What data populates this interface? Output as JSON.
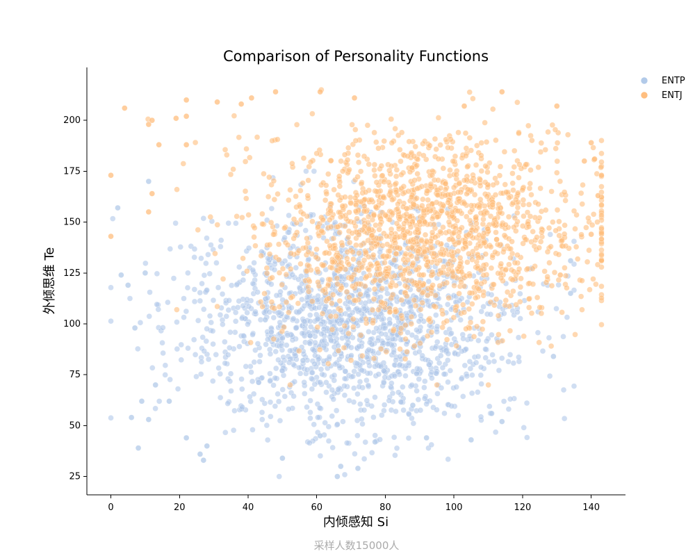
{
  "chart_data": {
    "type": "scatter",
    "title": "Comparison of Personality Functions",
    "xlabel": "内倾感知 Si",
    "ylabel": "外倾思维 Te",
    "footnote": "采样人数15000人",
    "xlim": [
      -7,
      150
    ],
    "ylim": [
      16,
      226
    ],
    "xticks": [
      0,
      20,
      40,
      60,
      80,
      100,
      120,
      140
    ],
    "yticks": [
      25,
      50,
      75,
      100,
      125,
      150,
      175,
      200
    ],
    "grid": false,
    "legend_position": "top-right (outside plot)",
    "series": [
      {
        "name": "ENTP",
        "color": "#aec7e8",
        "x_range": [
          0,
          135
        ],
        "y_range": [
          25,
          175
        ],
        "x_center": 70,
        "y_center": 100,
        "sample_points": [
          [
            2,
            157
          ],
          [
            3,
            124
          ],
          [
            5,
            119
          ],
          [
            6,
            54
          ],
          [
            7,
            98
          ],
          [
            8,
            39
          ],
          [
            9,
            62
          ],
          [
            10,
            125
          ],
          [
            11,
            53
          ],
          [
            11,
            170
          ],
          [
            13,
            70
          ],
          [
            17,
            62
          ],
          [
            22,
            44
          ],
          [
            26,
            36
          ],
          [
            27,
            33
          ],
          [
            28,
            40
          ],
          [
            45,
            102
          ],
          [
            50,
            34
          ],
          [
            56,
            82
          ],
          [
            61,
            45
          ],
          [
            66,
            25
          ],
          [
            67,
            30
          ],
          [
            72,
            29
          ],
          [
            77,
            42
          ],
          [
            88,
            60
          ],
          [
            92,
            44
          ],
          [
            105,
            43
          ],
          [
            111,
            56
          ],
          [
            114,
            52
          ],
          [
            129,
            84
          ],
          [
            134,
            131
          ],
          [
            134,
            115
          ]
        ]
      },
      {
        "name": "ENTJ",
        "color": "#ffbb78",
        "x_range": [
          0,
          143
        ],
        "y_range": [
          70,
          215
        ],
        "x_center": 92,
        "y_center": 145,
        "sample_points": [
          [
            0,
            173
          ],
          [
            0,
            143
          ],
          [
            4,
            206
          ],
          [
            11,
            198
          ],
          [
            11,
            155
          ],
          [
            12,
            200
          ],
          [
            12,
            164
          ],
          [
            14,
            188
          ],
          [
            19,
            201
          ],
          [
            22,
            210
          ],
          [
            22,
            202
          ],
          [
            22,
            188
          ],
          [
            31,
            209
          ],
          [
            38,
            208
          ],
          [
            41,
            211
          ],
          [
            48,
            214
          ],
          [
            61,
            214
          ],
          [
            71,
            211
          ],
          [
            103,
            207
          ],
          [
            114,
            214
          ],
          [
            130,
            207
          ],
          [
            131,
            124
          ],
          [
            138,
            180
          ],
          [
            140,
            189
          ],
          [
            140,
            144
          ],
          [
            141,
            181
          ],
          [
            142,
            163
          ],
          [
            143,
            173
          ]
        ]
      }
    ]
  }
}
